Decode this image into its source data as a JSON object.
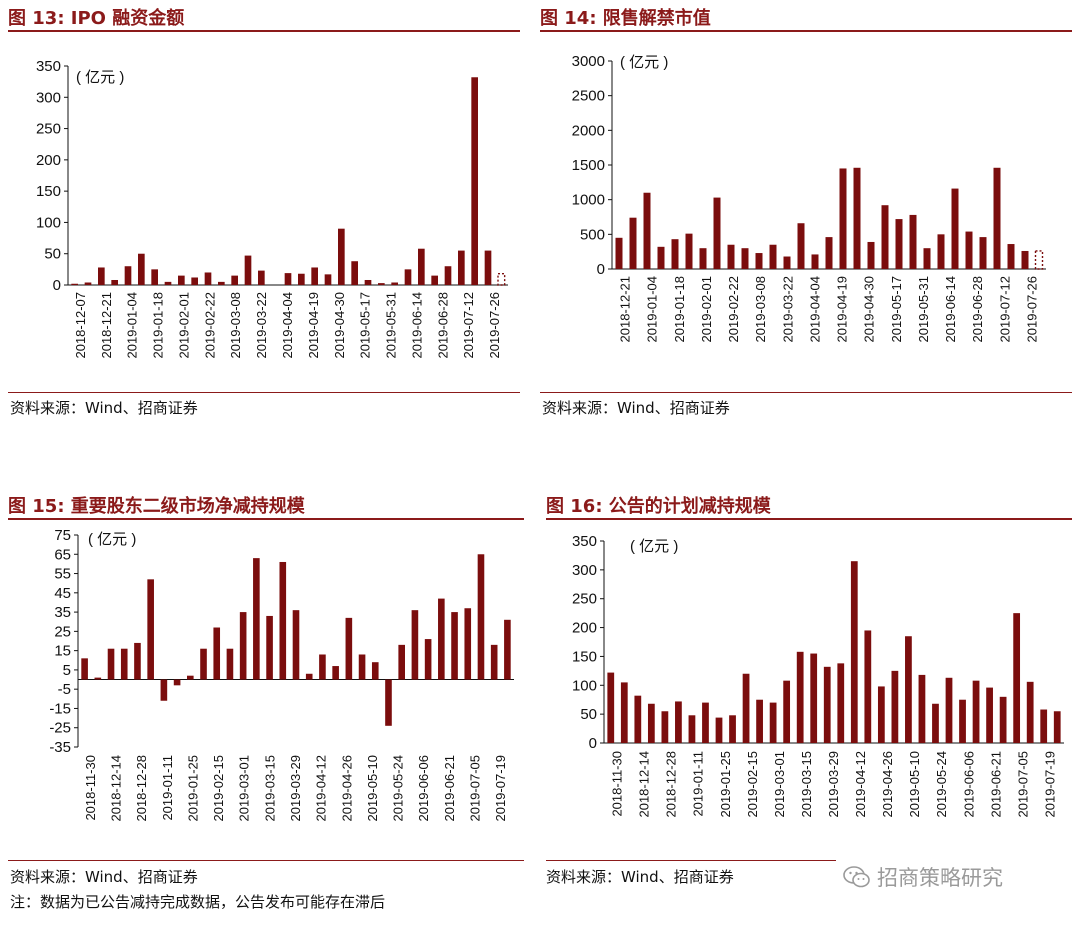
{
  "panels": [
    {
      "id": "ipo",
      "title": "图 13:  IPO 融资金额",
      "source": "资料来源：Wind、招商证券",
      "unit": "( 亿元 )",
      "chart_data": {
        "type": "bar",
        "title": "图 13:  IPO 融资金额",
        "ylabel": "( 亿元 )",
        "ylim": [
          0,
          350
        ],
        "yticks": [
          0,
          50,
          100,
          150,
          200,
          250,
          300,
          350
        ],
        "tick_labels": [
          "2018-12-07",
          "2018-12-21",
          "2019-01-04",
          "2019-01-18",
          "2019-02-01",
          "2019-02-22",
          "2019-03-08",
          "2019-03-22",
          "2019-04-04",
          "2019-04-19",
          "2019-04-30",
          "2019-05-17",
          "2019-05-31",
          "2019-06-14",
          "2019-06-28",
          "2019-07-12",
          "2019-07-26"
        ],
        "values": [
          2,
          4,
          28,
          8,
          30,
          50,
          25,
          5,
          15,
          12,
          20,
          5,
          15,
          47,
          23,
          0,
          19,
          18,
          28,
          17,
          90,
          38,
          8,
          3,
          4,
          25,
          58,
          15,
          30,
          55,
          332,
          55,
          18
        ],
        "last_bar_dashed": true,
        "color": "#7b0d0d"
      }
    },
    {
      "id": "unlock",
      "title": "图 14:  限售解禁市值",
      "source": "资料来源：Wind、招商证券",
      "unit": "( 亿元 )",
      "chart_data": {
        "type": "bar",
        "title": "图 14:  限售解禁市值",
        "ylabel": "( 亿元 )",
        "ylim": [
          0,
          3000
        ],
        "yticks": [
          0,
          500,
          1000,
          1500,
          2000,
          2500,
          3000
        ],
        "tick_labels": [
          "2018-12-21",
          "2019-01-04",
          "2019-01-18",
          "2019-02-01",
          "2019-02-22",
          "2019-03-08",
          "2019-03-22",
          "2019-04-04",
          "2019-04-19",
          "2019-04-30",
          "2019-05-17",
          "2019-05-31",
          "2019-06-14",
          "2019-06-28",
          "2019-07-12",
          "2019-07-26"
        ],
        "values": [
          450,
          740,
          1100,
          320,
          430,
          510,
          300,
          1030,
          350,
          300,
          230,
          350,
          180,
          660,
          210,
          460,
          1450,
          1460,
          390,
          920,
          720,
          780,
          300,
          500,
          1160,
          540,
          460,
          1460,
          360,
          260,
          260
        ],
        "last_bar_dashed": true,
        "color": "#7b0d0d"
      }
    },
    {
      "id": "net-reduction",
      "title": "图 15:  重要股东二级市场净减持规模",
      "source": "资料来源：Wind、招商证券",
      "note": "注：数据为已公告减持完成数据，公告发布可能存在滞后",
      "unit": "( 亿元 )",
      "chart_data": {
        "type": "bar",
        "title": "图 15:  重要股东二级市场净减持规模",
        "ylabel": "( 亿元 )",
        "ylim": [
          -35,
          75
        ],
        "yticks": [
          -35,
          -25,
          -15,
          -5,
          5,
          15,
          25,
          35,
          45,
          55,
          65,
          75
        ],
        "tick_labels": [
          "2018-11-30",
          "2018-12-14",
          "2018-12-28",
          "2019-01-11",
          "2019-01-25",
          "2019-02-15",
          "2019-03-01",
          "2019-03-15",
          "2019-03-29",
          "2019-04-12",
          "2019-04-26",
          "2019-05-10",
          "2019-05-24",
          "2019-06-06",
          "2019-06-21",
          "2019-07-05",
          "2019-07-19"
        ],
        "values": [
          11,
          1,
          16,
          16,
          19,
          52,
          -11,
          -3,
          2,
          16,
          27,
          16,
          35,
          63,
          33,
          61,
          36,
          3,
          13,
          7,
          32,
          13,
          9,
          -24,
          18,
          36,
          21,
          42,
          35,
          37,
          65,
          18,
          31
        ],
        "color": "#7b0d0d"
      }
    },
    {
      "id": "planned-reduction",
      "title": "图 16:  公告的计划减持规模",
      "source": "资料来源：Wind、招商证券",
      "unit": "( 亿元 )",
      "chart_data": {
        "type": "bar",
        "title": "图 16:  公告的计划减持规模",
        "ylabel": "( 亿元 )",
        "ylim": [
          0,
          350
        ],
        "yticks": [
          0,
          50,
          100,
          150,
          200,
          250,
          300,
          350
        ],
        "tick_labels": [
          "2018-11-30",
          "2018-12-14",
          "2018-12-28",
          "2019-01-11",
          "2019-01-25",
          "2019-02-15",
          "2019-03-01",
          "2019-03-15",
          "2019-03-29",
          "2019-04-12",
          "2019-04-26",
          "2019-05-10",
          "2019-05-24",
          "2019-06-06",
          "2019-06-21",
          "2019-07-05",
          "2019-07-19"
        ],
        "values": [
          122,
          105,
          82,
          68,
          55,
          72,
          48,
          70,
          44,
          48,
          120,
          75,
          70,
          108,
          158,
          155,
          132,
          138,
          315,
          195,
          98,
          125,
          185,
          118,
          68,
          113,
          75,
          108,
          96,
          80,
          225,
          106,
          58,
          55
        ],
        "color": "#7b0d0d"
      }
    }
  ],
  "watermark": {
    "icon": "wechat-icon",
    "text": "招商策略研究"
  }
}
